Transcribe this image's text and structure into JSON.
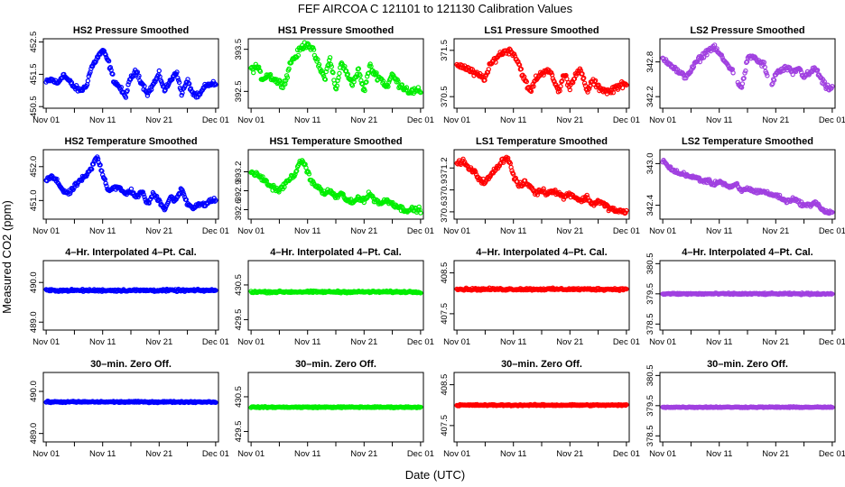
{
  "chart_data": {
    "type": "scatter",
    "title": "FEF   AIRCOA C   121101 to 121130   Calibration Values",
    "xlabel": "Date (UTC)",
    "ylabel": "Measured CO2 (ppm)",
    "x_ticks": [
      {
        "day": 1,
        "label": "Nov 01"
      },
      {
        "day": 11,
        "label": "Nov 11"
      },
      {
        "day": 21,
        "label": "Nov 21"
      },
      {
        "day": 31,
        "label": "Dec 01"
      }
    ],
    "xlim": [
      0.5,
      31.5
    ],
    "colors": {
      "HS2": "#0000ff",
      "HS1": "#00ee00",
      "LS1": "#ff0000",
      "LS2": "#a040e0"
    },
    "panels": [
      {
        "title": "HS2 Pressure Smoothed",
        "series": "HS2",
        "ylim": [
          450.45,
          452.6
        ],
        "yticks": [
          {
            "v": 450.5,
            "label": "450.5"
          },
          {
            "v": 451.5,
            "label": "451.5"
          },
          {
            "v": 452.5,
            "label": "452.5"
          }
        ],
        "values": [
          451.25,
          451.35,
          451.2,
          451.5,
          451.3,
          451.1,
          451.0,
          451.1,
          451.7,
          452.0,
          452.25,
          451.9,
          451.3,
          451.1,
          450.8,
          451.4,
          451.6,
          451.2,
          450.9,
          451.2,
          451.5,
          451.0,
          451.3,
          451.6,
          450.9,
          451.3,
          450.9,
          450.8,
          451.1,
          451.2
        ],
        "variability": 0.12,
        "gaps": []
      },
      {
        "title": "HS1 Pressure Smoothed",
        "series": "HS1",
        "ylim": [
          392.1,
          393.75
        ],
        "yticks": [
          {
            "v": 392.5,
            "label": "392.5"
          },
          {
            "v": 393.5,
            "label": "393.5"
          }
        ],
        "values": [
          393.0,
          393.1,
          392.8,
          392.9,
          392.8,
          392.7,
          392.7,
          393.2,
          393.35,
          393.55,
          393.65,
          393.45,
          393.1,
          392.8,
          393.3,
          392.5,
          393.2,
          392.9,
          392.7,
          393.0,
          392.5,
          393.1,
          392.9,
          392.8,
          392.6,
          392.9,
          392.7,
          392.6,
          392.5,
          392.5
        ],
        "variability": 0.12,
        "gaps": []
      },
      {
        "title": "LS1 Pressure Smoothed",
        "series": "LS1",
        "ylim": [
          370.25,
          371.75
        ],
        "yticks": [
          {
            "v": 370.5,
            "label": "370.5"
          },
          {
            "v": 371.5,
            "label": "371.5"
          }
        ],
        "values": [
          371.2,
          371.15,
          371.1,
          371.0,
          370.95,
          370.9,
          371.2,
          371.35,
          371.45,
          371.5,
          371.45,
          371.2,
          370.85,
          370.6,
          370.9,
          371.0,
          371.1,
          370.9,
          370.6,
          371.0,
          370.7,
          371.0,
          371.05,
          370.6,
          370.85,
          370.7,
          370.65,
          370.6,
          370.7,
          370.75
        ],
        "variability": 0.1,
        "gaps": []
      },
      {
        "title": "LS2 Pressure Smoothed",
        "series": "LS2",
        "ylim": [
          342.0,
          343.2
        ],
        "yticks": [
          {
            "v": 342.2,
            "label": "342.2"
          },
          {
            "v": 342.8,
            "label": "342.8"
          }
        ],
        "values": [
          342.85,
          342.8,
          342.7,
          342.6,
          342.55,
          342.65,
          342.8,
          342.9,
          343.0,
          343.05,
          342.95,
          342.8,
          342.7,
          342.5,
          342.35,
          342.85,
          342.9,
          342.8,
          342.75,
          342.3,
          342.6,
          342.65,
          342.7,
          342.6,
          342.7,
          342.55,
          342.6,
          342.7,
          342.5,
          342.35
        ],
        "variability": 0.07,
        "gaps": [
          [
            13.5,
            14.2
          ],
          [
            19.5,
            20.3
          ]
        ]
      },
      {
        "title": "HS2 Temperature Smoothed",
        "series": "HS2",
        "ylim": [
          450.45,
          452.5
        ],
        "yticks": [
          {
            "v": 451.0,
            "label": "451.0"
          },
          {
            "v": 452.0,
            "label": "452.0"
          }
        ],
        "values": [
          451.6,
          451.7,
          451.55,
          451.3,
          451.2,
          451.4,
          451.6,
          451.7,
          451.95,
          452.3,
          451.8,
          451.3,
          451.4,
          451.35,
          451.2,
          451.3,
          451.1,
          451.25,
          450.9,
          451.2,
          451.0,
          450.75,
          451.1,
          451.0,
          451.35,
          450.9,
          450.8,
          450.9,
          450.85,
          451.0
        ],
        "variability": 0.1,
        "gaps": []
      },
      {
        "title": "HS1 Temperature Smoothed",
        "series": "HS1",
        "ylim": [
          392.45,
          393.55
        ],
        "yticks": [
          {
            "v": 392.6,
            "label": "392.6"
          },
          {
            "v": 392.9,
            "label": "392.9"
          },
          {
            "v": 393.2,
            "label": "393.2"
          }
        ],
        "values": [
          393.2,
          393.15,
          393.1,
          393.0,
          392.95,
          392.9,
          393.0,
          393.1,
          393.2,
          393.4,
          393.2,
          393.0,
          392.95,
          392.85,
          392.9,
          392.8,
          392.85,
          392.75,
          392.7,
          392.8,
          392.75,
          392.85,
          392.75,
          392.7,
          392.75,
          392.7,
          392.65,
          392.6,
          392.6,
          392.6
        ],
        "variability": 0.06,
        "gaps": []
      },
      {
        "title": "LS1 Temperature Smoothed",
        "series": "LS1",
        "ylim": [
          370.5,
          371.45
        ],
        "yticks": [
          {
            "v": 370.6,
            "label": "370.6"
          },
          {
            "v": 370.9,
            "label": "370.9"
          },
          {
            "v": 371.2,
            "label": "371.2"
          }
        ],
        "values": [
          371.25,
          371.3,
          371.2,
          371.15,
          371.05,
          371.0,
          371.1,
          371.2,
          371.3,
          371.35,
          371.1,
          370.95,
          371.0,
          370.95,
          370.85,
          370.9,
          370.85,
          370.9,
          370.85,
          370.8,
          370.85,
          370.8,
          370.75,
          370.8,
          370.7,
          370.75,
          370.7,
          370.65,
          370.62,
          370.6
        ],
        "variability": 0.05,
        "gaps": []
      },
      {
        "title": "LS2 Temperature Smoothed",
        "series": "LS2",
        "ylim": [
          342.2,
          343.2
        ],
        "yticks": [
          {
            "v": 342.4,
            "label": "342.4"
          },
          {
            "v": 343.0,
            "label": "343.0"
          }
        ],
        "values": [
          343.05,
          342.95,
          342.9,
          342.85,
          342.85,
          342.8,
          342.8,
          342.75,
          342.75,
          342.7,
          342.75,
          342.7,
          342.65,
          342.7,
          342.6,
          342.65,
          342.6,
          342.6,
          342.6,
          342.55,
          342.55,
          342.5,
          342.45,
          342.5,
          342.45,
          342.4,
          342.4,
          342.45,
          342.35,
          342.3
        ],
        "variability": 0.04,
        "gaps": []
      },
      {
        "title": "4–Hr. Interpolated 4–Pt. Cal.",
        "series": "HS2",
        "ylim": [
          488.8,
          490.55
        ],
        "yticks": [
          {
            "v": 489.0,
            "label": "489.0"
          },
          {
            "v": 490.0,
            "label": "490.0"
          }
        ],
        "constant": 489.8,
        "variability": 0.04,
        "gaps": []
      },
      {
        "title": "4–Hr. Interpolated 4–Pt. Cal.",
        "series": "HS1",
        "ylim": [
          429.2,
          431.2
        ],
        "yticks": [
          {
            "v": 429.5,
            "label": "429.5"
          },
          {
            "v": 430.5,
            "label": "430.5"
          }
        ],
        "constant": 430.3,
        "variability": 0.04,
        "gaps": []
      },
      {
        "title": "4–Hr. Interpolated 4–Pt. Cal.",
        "series": "LS1",
        "ylim": [
          407.1,
          408.8
        ],
        "yticks": [
          {
            "v": 407.5,
            "label": "407.5"
          },
          {
            "v": 408.5,
            "label": "408.5"
          }
        ],
        "constant": 408.1,
        "variability": 0.04,
        "gaps": []
      },
      {
        "title": "4–Hr. Interpolated 4–Pt. Cal.",
        "series": "LS2",
        "ylim": [
          378.3,
          380.6
        ],
        "yticks": [
          {
            "v": 378.5,
            "label": "378.5"
          },
          {
            "v": 379.5,
            "label": "379.5"
          },
          {
            "v": 380.5,
            "label": "380.5"
          }
        ],
        "constant": 379.5,
        "variability": 0.04,
        "gaps": []
      },
      {
        "title": "30–min. Zero Off.",
        "series": "HS2",
        "ylim": [
          488.8,
          490.45
        ],
        "yticks": [
          {
            "v": 489.0,
            "label": "489.0"
          },
          {
            "v": 490.0,
            "label": "490.0"
          }
        ],
        "constant": 489.75,
        "variability": 0.025,
        "gaps": []
      },
      {
        "title": "30–min. Zero Off.",
        "series": "HS1",
        "ylim": [
          429.2,
          431.2
        ],
        "yticks": [
          {
            "v": 429.5,
            "label": "429.5"
          },
          {
            "v": 430.5,
            "label": "430.5"
          }
        ],
        "constant": 430.2,
        "variability": 0.025,
        "gaps": []
      },
      {
        "title": "30–min. Zero Off.",
        "series": "LS1",
        "ylim": [
          407.1,
          408.8
        ],
        "yticks": [
          {
            "v": 407.5,
            "label": "407.5"
          },
          {
            "v": 408.5,
            "label": "408.5"
          }
        ],
        "constant": 408.0,
        "variability": 0.025,
        "gaps": []
      },
      {
        "title": "30–min. Zero Off.",
        "series": "LS2",
        "ylim": [
          378.3,
          380.6
        ],
        "yticks": [
          {
            "v": 378.5,
            "label": "378.5"
          },
          {
            "v": 379.5,
            "label": "379.5"
          },
          {
            "v": 380.5,
            "label": "380.5"
          }
        ],
        "constant": 379.45,
        "variability": 0.025,
        "gaps": []
      }
    ]
  }
}
